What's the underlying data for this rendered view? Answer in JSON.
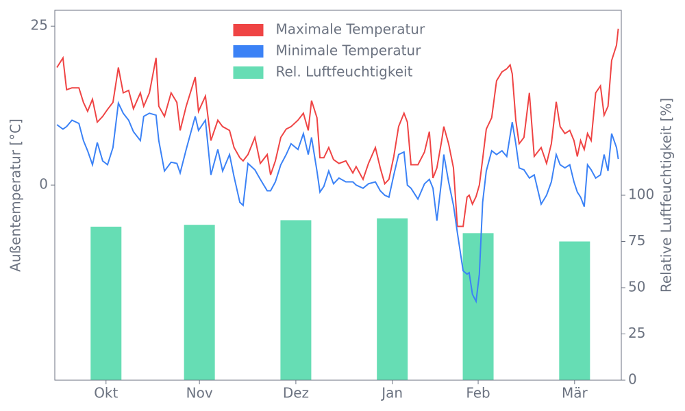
{
  "chart_data": {
    "type": "line",
    "ylabel": "Außentemperatur [°C]",
    "y2label": "Relative Luftfeuchtigkeit [%]",
    "xlim": [
      0,
      188
    ],
    "xticks": [
      {
        "value": 17,
        "label": "Okt"
      },
      {
        "value": 48,
        "label": "Nov"
      },
      {
        "value": 80,
        "label": "Dez"
      },
      {
        "value": 112,
        "label": "Jan"
      },
      {
        "value": 140.5,
        "label": "Feb"
      },
      {
        "value": 172.5,
        "label": "Mär"
      }
    ],
    "ylim": [
      -30.7,
      27.5
    ],
    "yticks": [
      0,
      25
    ],
    "y2lim": [
      0,
      200
    ],
    "y2ticks": [
      0,
      25,
      50,
      75,
      100
    ],
    "legend": "upper center",
    "x": [
      0.7,
      2.7,
      3.9,
      5.7,
      8,
      9.5,
      10.9,
      12.5,
      14.1,
      15.9,
      17.5,
      19.3,
      21.1,
      22.7,
      24.5,
      26.1,
      28.4,
      29.5,
      31.4,
      33.6,
      34.5,
      36.4,
      38.6,
      40.5,
      41.6,
      43.6,
      46.6,
      47.7,
      50,
      51.8,
      54.1,
      55.7,
      58,
      59.5,
      61.4,
      62.5,
      64.1,
      66.4,
      68.2,
      70.5,
      71.6,
      73.2,
      75,
      76.8,
      78.4,
      80.7,
      82.5,
      84.1,
      85.2,
      87,
      88,
      89.3,
      90.9,
      92.5,
      94.3,
      96.6,
      98.9,
      100,
      102.3,
      104.1,
      106.4,
      108,
      109.5,
      110.9,
      112.5,
      114.1,
      115.9,
      117,
      118.2,
      120.5,
      122.7,
      124.3,
      125.5,
      126.8,
      128.4,
      129.1,
      130.7,
      132.3,
      133.6,
      135.5,
      136.8,
      137.5,
      138.6,
      139.8,
      140.9,
      142,
      143.2,
      145,
      146.6,
      148.4,
      150,
      151.1,
      151.8,
      153,
      154.1,
      155.7,
      157.5,
      159.1,
      161.4,
      163.2,
      164.8,
      166.4,
      167.7,
      169.3,
      170.9,
      172.3,
      173.4,
      174.5,
      175.7,
      176.8,
      178,
      179.5,
      181.1,
      182.3,
      183.6,
      184.8,
      186.4,
      187
    ],
    "series": [
      {
        "name": "Rel. Luftfeuchtigkeit",
        "type": "bar",
        "axis": "y2",
        "color": "#66ddb4",
        "x": [
          17,
          48,
          80,
          112,
          140.5,
          172.5
        ],
        "values": [
          83,
          84,
          86.5,
          87.5,
          79.5,
          75
        ]
      },
      {
        "name": "Maximale Temperatur",
        "type": "line",
        "color": "#ef4444",
        "values": [
          18.5,
          20,
          15,
          15.3,
          15.3,
          13,
          11.6,
          13.5,
          9.9,
          10.8,
          11.9,
          13,
          18.5,
          14.5,
          14.9,
          12,
          14.5,
          12.4,
          14.5,
          20,
          12.4,
          10.8,
          14.5,
          13,
          8.6,
          12.4,
          17,
          11.6,
          14,
          7,
          10.2,
          9.2,
          8.6,
          5.9,
          4.3,
          3.8,
          4.8,
          7.5,
          3.4,
          4.8,
          1.6,
          3.8,
          7.5,
          8.8,
          9.2,
          10.2,
          11.3,
          8.6,
          13.3,
          10.6,
          4.3,
          4.3,
          5.9,
          4,
          3.4,
          3.8,
          1.9,
          2.9,
          0.9,
          3.4,
          5.9,
          2.7,
          0.2,
          0.9,
          4.5,
          9.2,
          11.3,
          9.9,
          3.2,
          3.2,
          5.2,
          8.4,
          1.1,
          2.7,
          7,
          9.2,
          6.5,
          2.7,
          -6.5,
          -6.5,
          -1.9,
          -1.6,
          -3,
          -1.8,
          0,
          4.1,
          8.8,
          10.6,
          16.4,
          17.8,
          18.3,
          18.9,
          17.5,
          10.2,
          6.5,
          7.5,
          14.5,
          4.5,
          5.9,
          3.4,
          6.5,
          13.1,
          9.2,
          8.1,
          8.6,
          7,
          4.5,
          7,
          5.6,
          8.1,
          7,
          14.5,
          15.6,
          11,
          12.4,
          19.6,
          22,
          24.6
        ]
      },
      {
        "name": "Minimale Temperatur",
        "type": "line",
        "color": "#3b82f6",
        "values": [
          9.5,
          8.8,
          9.2,
          10.2,
          9.7,
          7,
          5.4,
          3.2,
          6.7,
          3.8,
          3.2,
          5.9,
          12.9,
          11.3,
          10.2,
          8.4,
          7,
          10.8,
          11.3,
          11,
          7,
          2.2,
          3.6,
          3.4,
          1.9,
          5.6,
          10.8,
          8.6,
          10.2,
          1.6,
          5.6,
          2.2,
          4.8,
          1.3,
          -2.7,
          -3.2,
          3.4,
          2.4,
          0.9,
          -0.9,
          -0.9,
          0.5,
          3.2,
          4.8,
          6.5,
          5.6,
          8.1,
          4.8,
          7.5,
          2.2,
          -1.1,
          -0.2,
          2.2,
          0.2,
          1.1,
          0.5,
          0.5,
          0,
          -0.5,
          0.2,
          0.5,
          -0.9,
          -1.6,
          -1.9,
          1.6,
          4.8,
          5.2,
          0,
          -0.5,
          -2.2,
          0.2,
          0.9,
          -0.5,
          -5.6,
          0.9,
          4.8,
          0.5,
          -3.2,
          -7.5,
          -13.5,
          -14,
          -13.8,
          -17.2,
          -18.3,
          -14,
          -2.7,
          2.2,
          5.4,
          4.8,
          5.4,
          4.5,
          7.8,
          9.9,
          6.5,
          2.7,
          2.4,
          1.1,
          1.6,
          -3,
          -1.6,
          0.5,
          4.8,
          3.2,
          2.7,
          3.2,
          0.5,
          -1.1,
          -1.9,
          -3.4,
          3.2,
          2.4,
          1.1,
          1.6,
          4.8,
          2.2,
          8.1,
          5.9,
          4.1
        ]
      }
    ]
  }
}
